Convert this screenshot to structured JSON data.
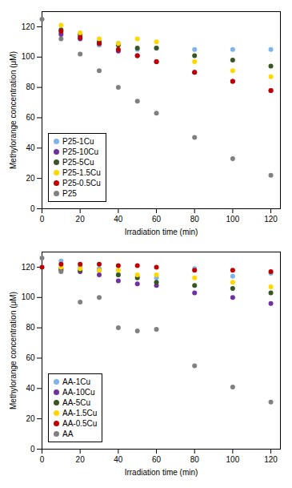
{
  "chart_data": [
    {
      "type": "scatter",
      "xlabel": "Irradiation time (min)",
      "ylabel": "Methylorange concentration (μM)",
      "xlim": [
        0,
        125
      ],
      "ylim": [
        0,
        130
      ],
      "xticks": [
        0,
        20,
        40,
        60,
        80,
        100,
        120
      ],
      "yticks": [
        0,
        20,
        40,
        60,
        80,
        100,
        120
      ],
      "legend": "lower left",
      "series": [
        {
          "name": "P25-1Cu",
          "color": "#7EB4EA",
          "x": [
            10,
            20,
            30,
            40,
            50,
            60,
            80,
            100,
            120
          ],
          "values": [
            116,
            113,
            108,
            109,
            105,
            106,
            105,
            105,
            105
          ]
        },
        {
          "name": "P25-10Cu",
          "color": "#7030A0",
          "x": [
            10,
            20,
            30,
            40,
            50,
            60,
            80,
            100,
            120
          ],
          "values": [
            115,
            112,
            109,
            104,
            101,
            97,
            90,
            84,
            78
          ]
        },
        {
          "name": "P25-5Cu",
          "color": "#375623",
          "x": [
            10,
            20,
            30,
            40,
            50,
            60,
            80,
            100,
            120
          ],
          "values": [
            118,
            115,
            110,
            108,
            106,
            106,
            101,
            98,
            94
          ]
        },
        {
          "name": "P25-1.5Cu",
          "color": "#FFD700",
          "x": [
            10,
            20,
            30,
            40,
            50,
            60,
            80,
            100,
            120
          ],
          "values": [
            121,
            116,
            112,
            109,
            112,
            110,
            97,
            91,
            87
          ]
        },
        {
          "name": "P25-0.5Cu",
          "color": "#C00000",
          "x": [
            10,
            20,
            30,
            40,
            50,
            60,
            80,
            100,
            120
          ],
          "values": [
            117,
            113,
            109,
            105,
            101,
            97,
            90,
            84,
            78
          ]
        },
        {
          "name": "P25",
          "color": "#808080",
          "x": [
            0,
            10,
            20,
            30,
            40,
            50,
            60,
            80,
            100,
            120
          ],
          "values": [
            125,
            112,
            102,
            91,
            80,
            71,
            63,
            47,
            33,
            22
          ]
        }
      ]
    },
    {
      "type": "scatter",
      "xlabel": "Irradiation time (min)",
      "ylabel": "Methylorange concentration (μM)",
      "xlim": [
        0,
        125
      ],
      "ylim": [
        0,
        130
      ],
      "xticks": [
        0,
        20,
        40,
        60,
        80,
        100,
        120
      ],
      "yticks": [
        0,
        20,
        40,
        60,
        80,
        100,
        120
      ],
      "legend": "lower left",
      "series": [
        {
          "name": "AA-1Cu",
          "color": "#7EB4EA",
          "x": [
            10,
            20,
            30,
            40,
            50,
            60,
            80,
            100,
            120
          ],
          "values": [
            124,
            120,
            119,
            115,
            114,
            113,
            119,
            114,
            116
          ]
        },
        {
          "name": "AA-10Cu",
          "color": "#7030A0",
          "x": [
            10,
            20,
            30,
            40,
            50,
            60,
            80,
            100,
            120
          ],
          "values": [
            118,
            117,
            115,
            111,
            109,
            108,
            103,
            100,
            96
          ]
        },
        {
          "name": "AA-5Cu",
          "color": "#375623",
          "x": [
            10,
            20,
            30,
            40,
            50,
            60,
            80,
            100,
            120
          ],
          "values": [
            119,
            118,
            118,
            115,
            113,
            110,
            108,
            106,
            103
          ]
        },
        {
          "name": "AA-1.5Cu",
          "color": "#FFD700",
          "x": [
            10,
            20,
            30,
            40,
            50,
            60,
            80,
            100,
            120
          ],
          "values": [
            120,
            119,
            118,
            118,
            115,
            115,
            113,
            110,
            107
          ]
        },
        {
          "name": "AA-0.5Cu",
          "color": "#C00000",
          "x": [
            0,
            10,
            20,
            30,
            40,
            50,
            60,
            80,
            100,
            120
          ],
          "values": [
            120,
            122,
            122,
            122,
            121,
            121,
            120,
            118,
            118,
            117
          ]
        },
        {
          "name": "AA",
          "color": "#808080",
          "x": [
            0,
            10,
            20,
            30,
            40,
            50,
            60,
            80,
            100,
            120
          ],
          "values": [
            126,
            117,
            97,
            100,
            80,
            78,
            79,
            55,
            41,
            31
          ]
        }
      ]
    }
  ]
}
